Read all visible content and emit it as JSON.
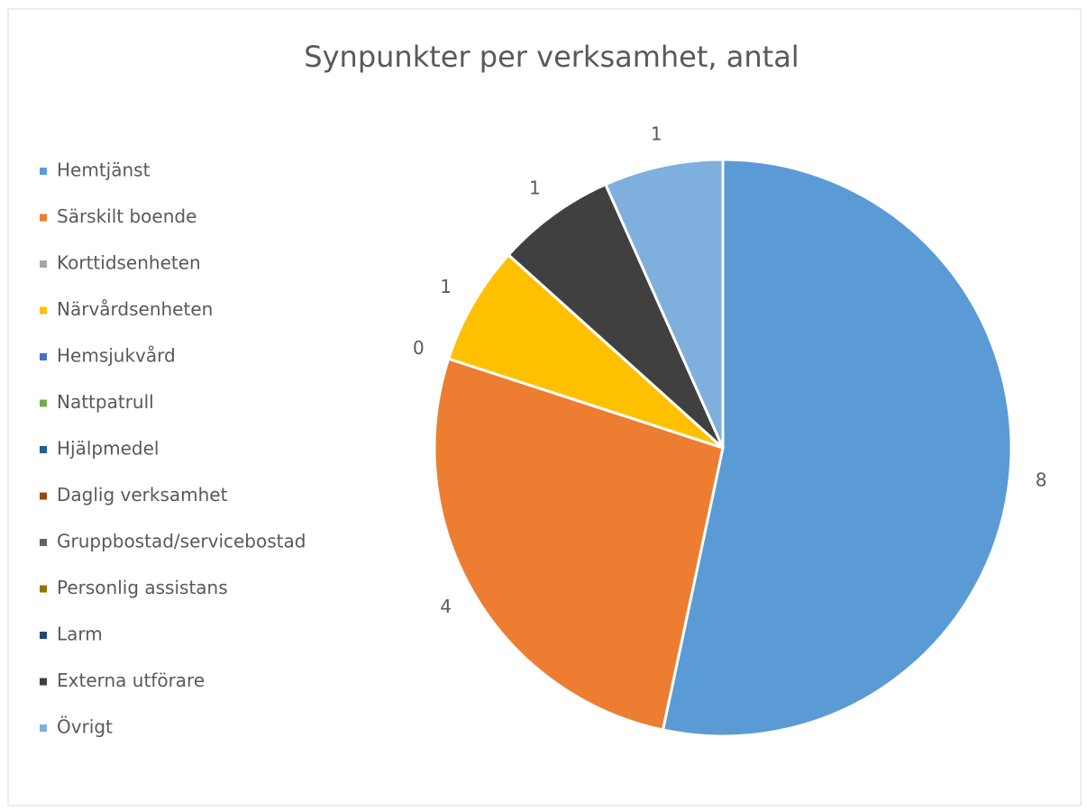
{
  "chart_data": {
    "type": "pie",
    "title": "Synpunkter per verksamhet, antal",
    "categories": [
      "Hemtjänst",
      "Särskilt boende",
      "Korttidsenheten",
      "Närvårdsenheten",
      "Hemsjukvård",
      "Nattpatrull",
      "Hjälpmedel",
      "Daglig verksamhet",
      "Gruppbostad/servicebostad",
      "Personlig assistans",
      "Larm",
      "Externa utförare",
      "Övrigt"
    ],
    "values": [
      8,
      4,
      0,
      1,
      0,
      0,
      0,
      0,
      0,
      0,
      0,
      1,
      1
    ],
    "value_labels": [
      8,
      4,
      0,
      1,
      null,
      null,
      null,
      null,
      null,
      null,
      null,
      1,
      1
    ],
    "colors": [
      "#5b9bd5",
      "#ed7d31",
      "#a5a5a5",
      "#ffc000",
      "#4472c4",
      "#70ad47",
      "#255e91",
      "#9e480e",
      "#636363",
      "#997300",
      "#264478",
      "#404040",
      "#7eafdd"
    ],
    "legend": "left"
  }
}
